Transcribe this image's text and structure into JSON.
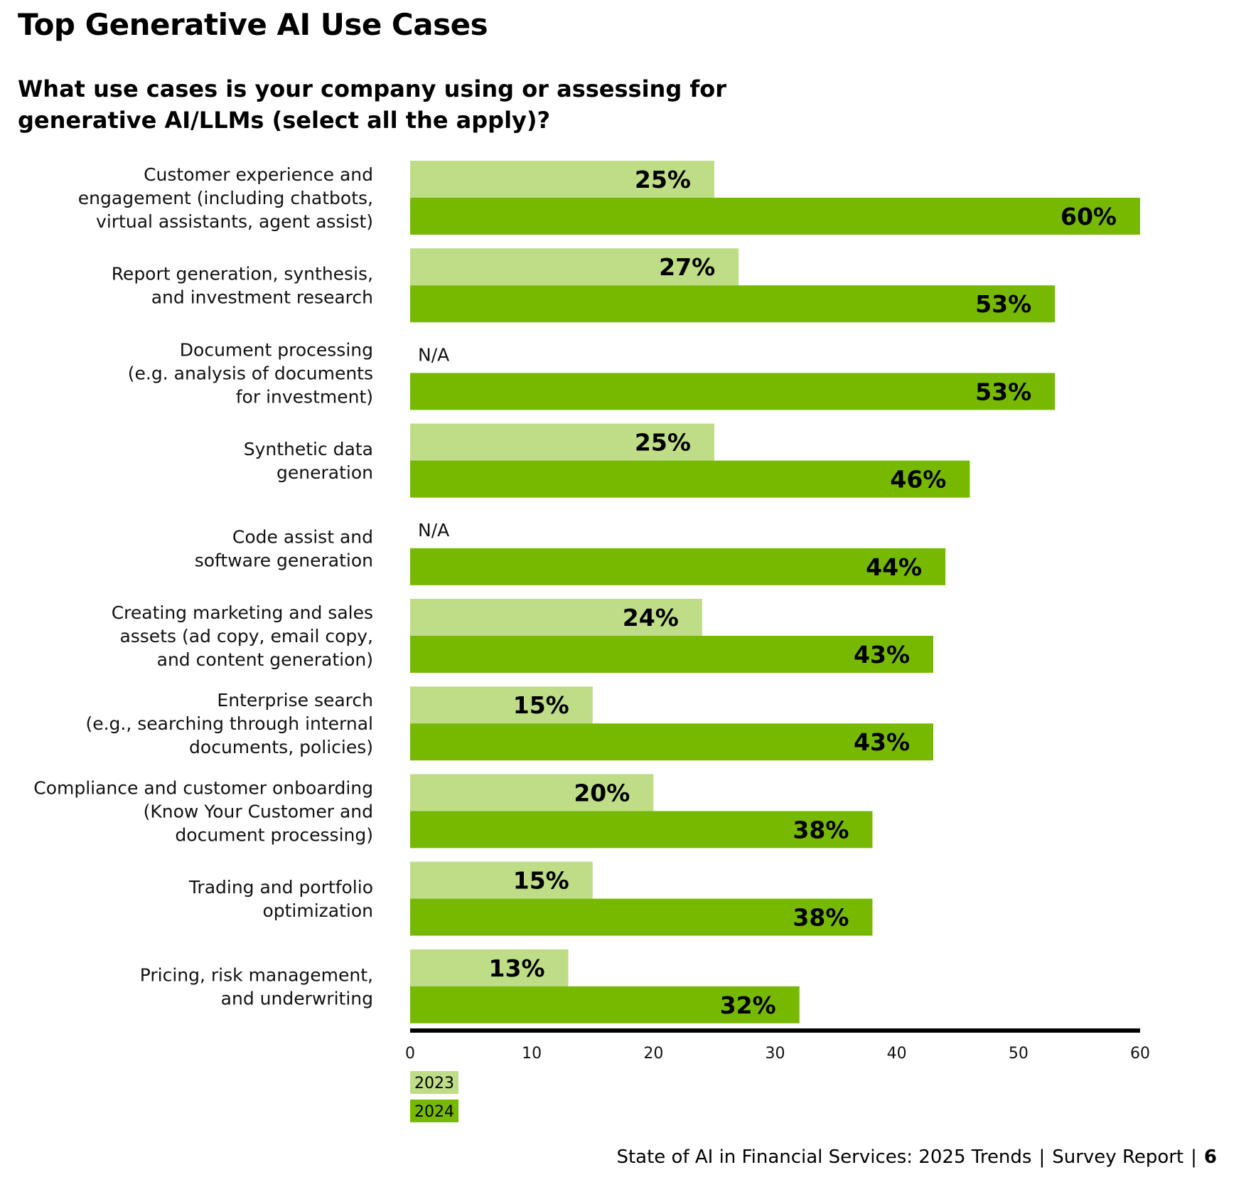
{
  "page": {
    "title": "Top Generative AI Use Cases",
    "question": "What use cases is your company using or assessing for generative AI/LLMs (select all the apply)?"
  },
  "footer": {
    "report": "State of AI in Financial Services: 2025 Trends",
    "separator": "|",
    "section": "Survey Report",
    "page_number": "6"
  },
  "chart_data": {
    "type": "bar",
    "orientation": "horizontal",
    "categories": [
      [
        "Customer experience and",
        "engagement (including chatbots,",
        "virtual assistants, agent assist)"
      ],
      [
        "Report generation, synthesis,",
        "and investment research"
      ],
      [
        "Document processing",
        "(e.g. analysis of documents",
        "for investment)"
      ],
      [
        "Synthetic data",
        "generation"
      ],
      [
        "Code assist and",
        "software generation"
      ],
      [
        "Creating marketing and sales",
        "assets (ad copy, email copy,",
        "and content generation)"
      ],
      [
        "Enterprise search",
        "(e.g., searching through internal",
        "documents, policies)"
      ],
      [
        "Compliance and customer onboarding",
        "(Know Your Customer and",
        "document processing)"
      ],
      [
        "Trading and portfolio",
        "optimization"
      ],
      [
        "Pricing, risk management,",
        "and underwriting"
      ]
    ],
    "series": [
      {
        "name": "2023",
        "color": "#bedd86",
        "values": [
          25,
          27,
          null,
          25,
          null,
          24,
          15,
          20,
          15,
          13
        ],
        "labels": [
          "25%",
          "27%",
          "N/A",
          "25%",
          "N/A",
          "24%",
          "15%",
          "20%",
          "15%",
          "13%"
        ]
      },
      {
        "name": "2024",
        "color": "#76b900",
        "values": [
          60,
          53,
          53,
          46,
          44,
          43,
          43,
          38,
          38,
          32
        ],
        "labels": [
          "60%",
          "53%",
          "53%",
          "46%",
          "44%",
          "43%",
          "43%",
          "38%",
          "38%",
          "32%"
        ]
      }
    ],
    "xlim": [
      0,
      60
    ],
    "x_ticks": [
      0,
      10,
      20,
      30,
      40,
      50,
      60
    ],
    "grid": false,
    "legend": "bottom-left"
  }
}
